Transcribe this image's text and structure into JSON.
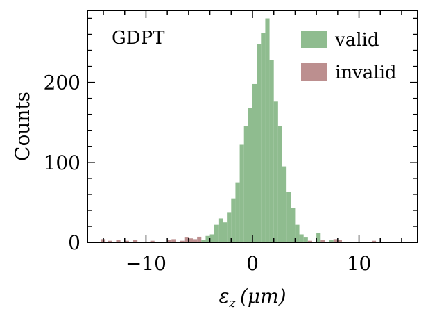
{
  "chart_data": {
    "type": "bar",
    "annotation": "GDPT",
    "xlabel_symbol": "ε",
    "xlabel_subscript": "z",
    "xlabel_unit": "(μm)",
    "ylabel": "Counts",
    "xlim": [
      -15.5,
      15.5
    ],
    "ylim": [
      0,
      290
    ],
    "x_ticks": [
      -10,
      0,
      10
    ],
    "x_tick_labels": [
      "−10",
      "0",
      "10"
    ],
    "y_ticks": [
      0,
      100,
      200
    ],
    "y_tick_labels": [
      "0",
      "100",
      "200"
    ],
    "legend": {
      "placement": "top-right",
      "entries": [
        "valid",
        "invalid"
      ]
    },
    "colors": {
      "valid": "#8fbc8f",
      "invalid": "#bc8f8f"
    },
    "bin_width": 0.4,
    "series": [
      {
        "name": "valid",
        "bins": [
          [
            -4.8,
            3
          ],
          [
            -4.4,
            8
          ],
          [
            -4.0,
            10
          ],
          [
            -3.6,
            22
          ],
          [
            -3.2,
            30
          ],
          [
            -2.8,
            25
          ],
          [
            -2.4,
            37
          ],
          [
            -2.0,
            55
          ],
          [
            -1.6,
            75
          ],
          [
            -1.2,
            122
          ],
          [
            -0.8,
            145
          ],
          [
            -0.4,
            168
          ],
          [
            0.0,
            198
          ],
          [
            0.4,
            248
          ],
          [
            0.8,
            262
          ],
          [
            1.2,
            280
          ],
          [
            1.6,
            228
          ],
          [
            2.0,
            176
          ],
          [
            2.4,
            145
          ],
          [
            2.8,
            95
          ],
          [
            3.2,
            63
          ],
          [
            3.6,
            43
          ],
          [
            4.0,
            22
          ],
          [
            4.4,
            10
          ],
          [
            4.8,
            6
          ],
          [
            6.0,
            12
          ],
          [
            7.2,
            3
          ]
        ]
      },
      {
        "name": "invalid",
        "bins": [
          [
            -14.2,
            4
          ],
          [
            -13.6,
            2
          ],
          [
            -12.8,
            3
          ],
          [
            -12.0,
            2
          ],
          [
            -11.2,
            3
          ],
          [
            -9.6,
            2
          ],
          [
            -8.0,
            3
          ],
          [
            -7.6,
            4
          ],
          [
            -6.8,
            2
          ],
          [
            -6.4,
            6
          ],
          [
            -6.0,
            5
          ],
          [
            -5.6,
            4
          ],
          [
            -5.2,
            7
          ],
          [
            5.2,
            2
          ],
          [
            6.4,
            3
          ],
          [
            7.6,
            4
          ],
          [
            8.0,
            3
          ],
          [
            11.2,
            2
          ]
        ]
      }
    ]
  }
}
